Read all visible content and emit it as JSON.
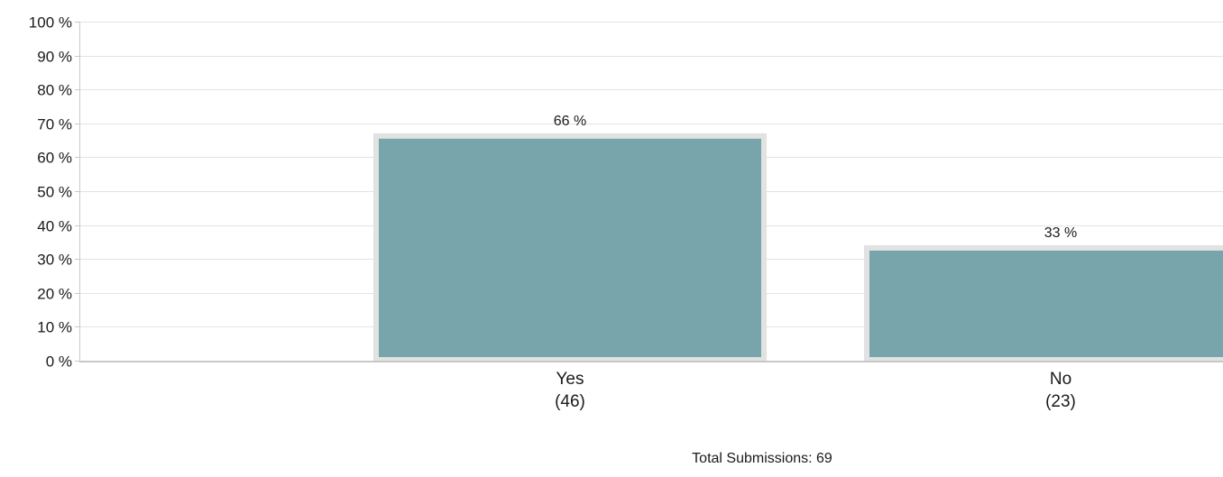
{
  "chart_data": {
    "type": "bar",
    "categories": [
      "Yes",
      "No"
    ],
    "counts": [
      "(46)",
      "(23)"
    ],
    "values": [
      66,
      33
    ],
    "data_labels": [
      "66 %",
      "33 %"
    ],
    "ylim": [
      0,
      100
    ],
    "ytick_values": [
      0,
      10,
      20,
      30,
      40,
      50,
      60,
      70,
      80,
      90,
      100
    ],
    "ytick_labels": [
      "0 %",
      "10 %",
      "20 %",
      "30 %",
      "40 %",
      "50 %",
      "60 %",
      "70 %",
      "80 %",
      "90 %",
      "100 %"
    ],
    "grid": true,
    "legend": "none",
    "colors": {
      "bar_fill": "#78a5ac",
      "bar_border": "#e2e2e2",
      "gridline": "#e3e3e3",
      "axis": "#c8c8c8"
    }
  },
  "footer": {
    "total_submissions_label": "Total Submissions: 69"
  }
}
